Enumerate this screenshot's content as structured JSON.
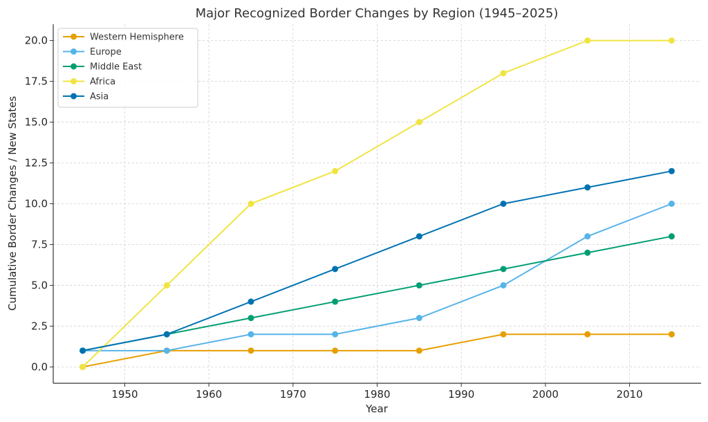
{
  "chart_data": {
    "type": "line",
    "title": "Major Recognized Border Changes by Region (1945–2025)",
    "xlabel": "Year",
    "ylabel": "Cumulative Border Changes / New States",
    "xlim": [
      1941.5,
      2018.5
    ],
    "ylim": [
      -1.0,
      21.0
    ],
    "xticks": [
      1950,
      1960,
      1970,
      1980,
      1990,
      2000,
      2010
    ],
    "xtick_labels": [
      "1950",
      "1960",
      "1970",
      "1980",
      "1990",
      "2000",
      "2010"
    ],
    "yticks": [
      0,
      2.5,
      5,
      7.5,
      10,
      12.5,
      15,
      17.5,
      20
    ],
    "ytick_labels": [
      "0.0",
      "2.5",
      "5.0",
      "7.5",
      "10.0",
      "12.5",
      "15.0",
      "17.5",
      "20.0"
    ],
    "grid": true,
    "legend_position": "top-left",
    "x": [
      1945,
      1955,
      1965,
      1975,
      1985,
      1995,
      2005,
      2015
    ],
    "series": [
      {
        "name": "Western Hemisphere",
        "color": "#E69F00",
        "values": [
          0,
          1,
          1,
          1,
          1,
          2,
          2,
          2
        ]
      },
      {
        "name": "Europe",
        "color": "#56B4E9",
        "values": [
          1,
          1,
          2,
          2,
          3,
          5,
          8,
          10
        ]
      },
      {
        "name": "Middle East",
        "color": "#009E73",
        "values": [
          1,
          2,
          3,
          4,
          5,
          6,
          7,
          8
        ]
      },
      {
        "name": "Africa",
        "color": "#F0E442",
        "values": [
          0,
          5,
          10,
          12,
          15,
          18,
          20,
          20
        ]
      },
      {
        "name": "Asia",
        "color": "#0072B2",
        "values": [
          1,
          2,
          4,
          6,
          8,
          10,
          11,
          12
        ]
      }
    ]
  }
}
